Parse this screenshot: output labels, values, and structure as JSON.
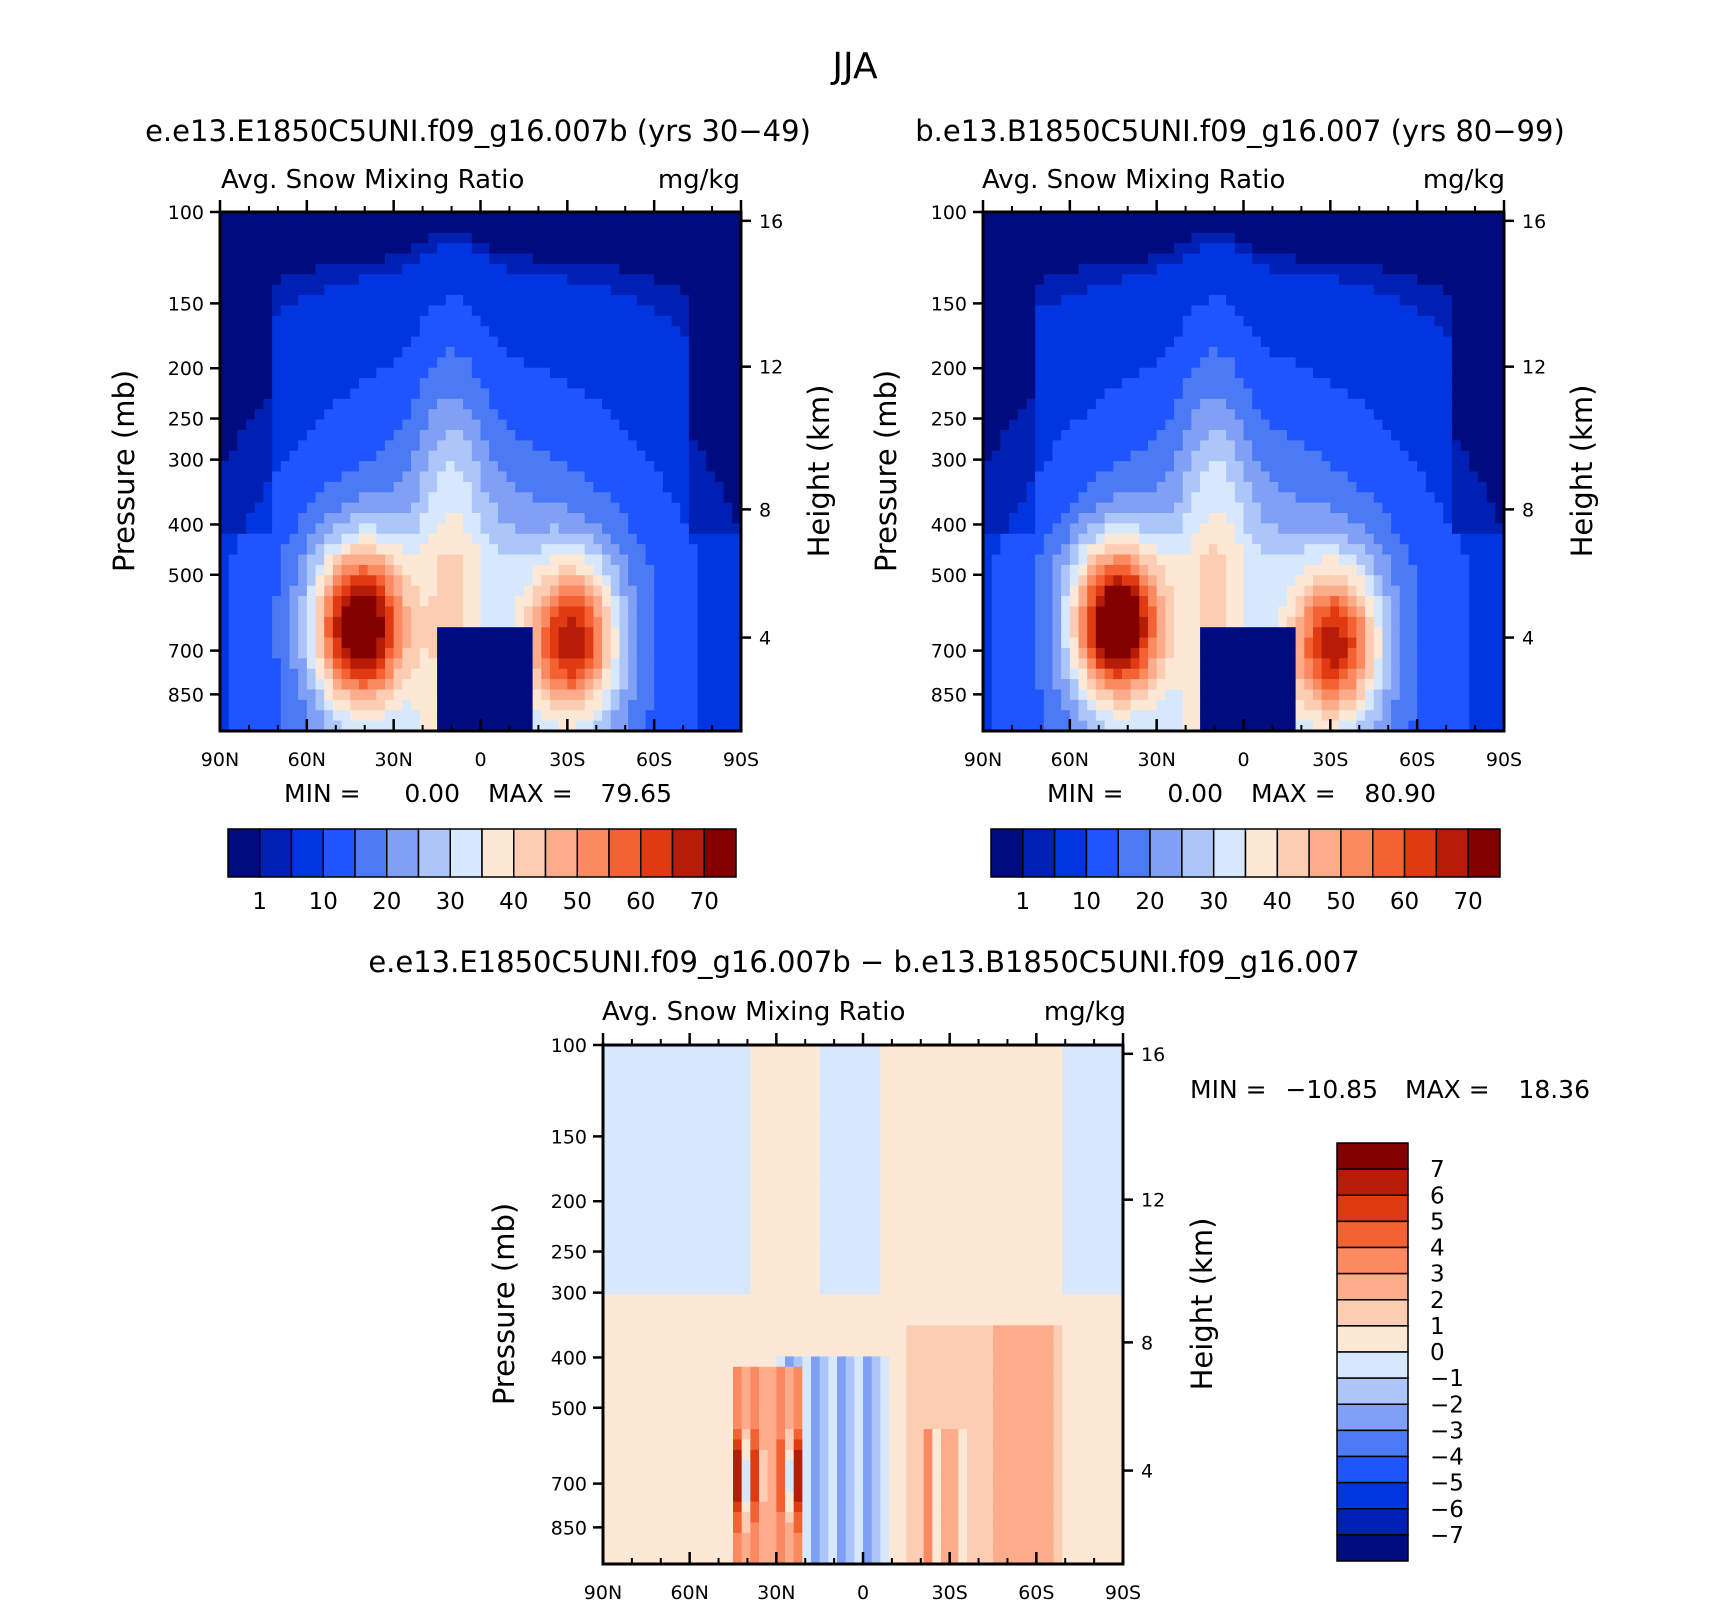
{
  "page": {
    "title": "JJA"
  },
  "chart_data": [
    {
      "id": "panel1",
      "type": "heatmap",
      "case_title": "e.e13.E1850C5UNI.f09_g16.007b (yrs 30−49)",
      "variable_label": "Avg. Snow Mixing Ratio",
      "units_label": "mg/kg",
      "ylabel": "Pressure (mb)",
      "y2label": "Height (km)",
      "x_ticks": [
        "90N",
        "60N",
        "30N",
        "0",
        "30S",
        "60S",
        "90S"
      ],
      "y_ticks": [
        "100",
        "150",
        "200",
        "250",
        "300",
        "400",
        "500",
        "700",
        "850"
      ],
      "y2_ticks": [
        "16",
        "12",
        "8",
        "4"
      ],
      "stats": {
        "min_label": "MIN =",
        "min_value": "0.00",
        "max_label": "MAX =",
        "max_value": "79.65"
      },
      "colorbar": {
        "orientation": "horizontal",
        "labels": [
          "1",
          "10",
          "20",
          "30",
          "40",
          "50",
          "60",
          "70"
        ],
        "colors": [
          "#000b7f",
          "#0020b3",
          "#0035e0",
          "#1f55ff",
          "#4c7af5",
          "#7fa0f4",
          "#adc6fa",
          "#d7e8fc",
          "#fde8d6",
          "#fdcdb3",
          "#fcac8a",
          "#fb8a60",
          "#f46233",
          "#e03a12",
          "#b71c09",
          "#830000"
        ]
      },
      "lobes": [
        {
          "lat": 42,
          "plev": 630,
          "peak": 79.65
        },
        {
          "lat": -32,
          "plev": 670,
          "peak": 62
        }
      ]
    },
    {
      "id": "panel2",
      "type": "heatmap",
      "case_title": "b.e13.B1850C5UNI.f09_g16.007 (yrs 80−99)",
      "variable_label": "Avg. Snow Mixing Ratio",
      "units_label": "mg/kg",
      "ylabel": "Pressure (mb)",
      "y2label": "Height (km)",
      "x_ticks": [
        "90N",
        "60N",
        "30N",
        "0",
        "30S",
        "60S",
        "90S"
      ],
      "y_ticks": [
        "100",
        "150",
        "200",
        "250",
        "300",
        "400",
        "500",
        "700",
        "850"
      ],
      "y2_ticks": [
        "16",
        "12",
        "8",
        "4"
      ],
      "stats": {
        "min_label": "MIN =",
        "min_value": "0.00",
        "max_label": "MAX =",
        "max_value": "80.90"
      },
      "colorbar": {
        "orientation": "horizontal",
        "labels": [
          "1",
          "10",
          "20",
          "30",
          "40",
          "50",
          "60",
          "70"
        ],
        "colors": [
          "#000b7f",
          "#0020b3",
          "#0035e0",
          "#1f55ff",
          "#4c7af5",
          "#7fa0f4",
          "#adc6fa",
          "#d7e8fc",
          "#fde8d6",
          "#fdcdb3",
          "#fcac8a",
          "#fb8a60",
          "#f46233",
          "#e03a12",
          "#b71c09",
          "#830000"
        ]
      },
      "lobes": [
        {
          "lat": 44,
          "plev": 620,
          "peak": 80.9
        },
        {
          "lat": -32,
          "plev": 680,
          "peak": 60
        }
      ]
    },
    {
      "id": "panel3",
      "type": "heatmap",
      "case_title": "e.e13.E1850C5UNI.f09_g16.007b − b.e13.B1850C5UNI.f09_g16.007",
      "variable_label": "Avg. Snow Mixing Ratio",
      "units_label": "mg/kg",
      "ylabel": "Pressure (mb)",
      "y2label": "Height (km)",
      "x_ticks": [
        "90N",
        "60N",
        "30N",
        "0",
        "30S",
        "60S",
        "90S"
      ],
      "y_ticks": [
        "100",
        "150",
        "200",
        "250",
        "300",
        "400",
        "500",
        "700",
        "850"
      ],
      "y2_ticks": [
        "16",
        "12",
        "8",
        "4"
      ],
      "stats": {
        "min_label": "MIN =",
        "min_value": "−10.85",
        "max_label": "MAX =",
        "max_value": "18.36"
      },
      "colorbar": {
        "orientation": "vertical",
        "labels": [
          "7",
          "6",
          "5",
          "4",
          "3",
          "2",
          "1",
          "0",
          "−1",
          "−2",
          "−3",
          "−4",
          "−5",
          "−6",
          "−7"
        ],
        "colors": [
          "#830000",
          "#b71c09",
          "#e03a12",
          "#f46233",
          "#fb8a60",
          "#fcac8a",
          "#fdcdb3",
          "#fde8d6",
          "#d7e8fc",
          "#adc6fa",
          "#7fa0f4",
          "#4c7af5",
          "#1f55ff",
          "#0035e0",
          "#0020b3",
          "#000b7f"
        ]
      }
    }
  ]
}
